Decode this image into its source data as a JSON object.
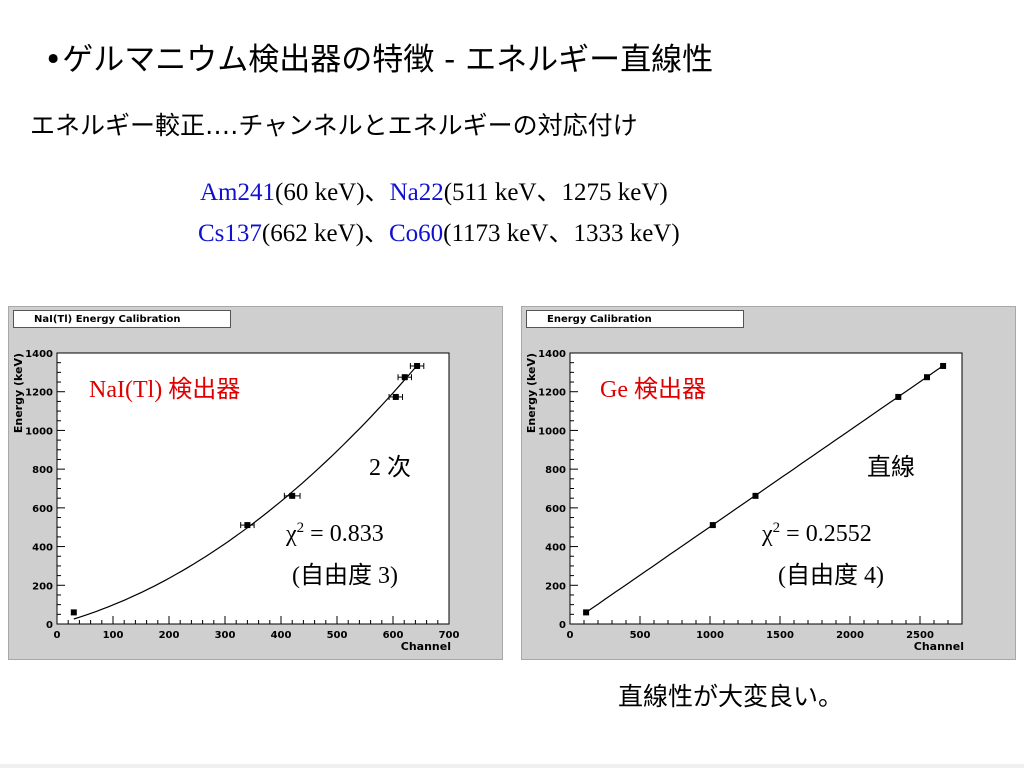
{
  "slide": {
    "title": "•ゲルマニウム検出器の特徴 - エネルギー直線性",
    "subtitle": "エネルギー較正‥‥チャンネルとエネルギーの対応付け",
    "sources": {
      "line1": [
        {
          "name": "Am241",
          "energy": "(60 keV)、"
        },
        {
          "name": "Na22",
          "energy": "(511 keV、1275 keV)"
        }
      ],
      "line2": [
        {
          "name": "Cs137",
          "energy": "(662 keV)、"
        },
        {
          "name": "Co60",
          "energy": "(1173 keV、1333 keV)"
        }
      ]
    },
    "conclusion": "直線性が大変良い。",
    "colors": {
      "source_name": "#1010d0",
      "detector_label": "#e00000",
      "panel_bg": "#cfcfcf"
    }
  },
  "chart_data": [
    {
      "type": "scatter",
      "title": "NaI(Tl) Energy Calibration",
      "xlabel": "Channel",
      "ylabel": "Energy (keV)",
      "xlim": [
        0,
        700
      ],
      "ylim": [
        0,
        1400
      ],
      "xticks": [
        0,
        100,
        200,
        300,
        400,
        500,
        600,
        700
      ],
      "yticks": [
        0,
        200,
        400,
        600,
        800,
        1000,
        1200,
        1400
      ],
      "points": [
        {
          "x": 30,
          "y": 60,
          "xerr": 0
        },
        {
          "x": 340,
          "y": 511,
          "xerr": 12
        },
        {
          "x": 420,
          "y": 662,
          "xerr": 14
        },
        {
          "x": 605,
          "y": 1173,
          "xerr": 12
        },
        {
          "x": 621,
          "y": 1275,
          "xerr": 12
        },
        {
          "x": 643,
          "y": 1333,
          "xerr": 12
        }
      ],
      "fit": {
        "model": "quadratic",
        "coefficients": [
          1.0,
          0.77,
          0.00203
        ]
      },
      "annotations": {
        "detector": "NaI(Tl) 検出器",
        "fit_order": "2 次",
        "chi2_symbol": "χ",
        "chi2_sup": "2",
        "chi2_value": " = 0.833",
        "dof": "(自由度 3)"
      }
    },
    {
      "type": "scatter",
      "title": "Energy Calibration",
      "xlabel": "Channel",
      "ylabel": "Energy (keV)",
      "xlim": [
        0,
        2800
      ],
      "ylim": [
        0,
        1400
      ],
      "xticks": [
        0,
        500,
        1000,
        1500,
        2000,
        2500
      ],
      "yticks": [
        0,
        200,
        400,
        600,
        800,
        1000,
        1200,
        1400
      ],
      "points": [
        {
          "x": 115,
          "y": 60,
          "xerr": 0
        },
        {
          "x": 1020,
          "y": 511,
          "xerr": 0
        },
        {
          "x": 1325,
          "y": 662,
          "xerr": 0
        },
        {
          "x": 2345,
          "y": 1173,
          "xerr": 0
        },
        {
          "x": 2550,
          "y": 1275,
          "xerr": 0
        },
        {
          "x": 2665,
          "y": 1333,
          "xerr": 0
        }
      ],
      "fit": {
        "model": "linear",
        "coefficients": [
          2.6,
          0.4995
        ]
      },
      "annotations": {
        "detector": "Ge 検出器",
        "fit_order": "直線",
        "chi2_symbol": "χ",
        "chi2_sup": "2",
        "chi2_value": " = 0.2552",
        "dof": "(自由度 4)"
      }
    }
  ]
}
